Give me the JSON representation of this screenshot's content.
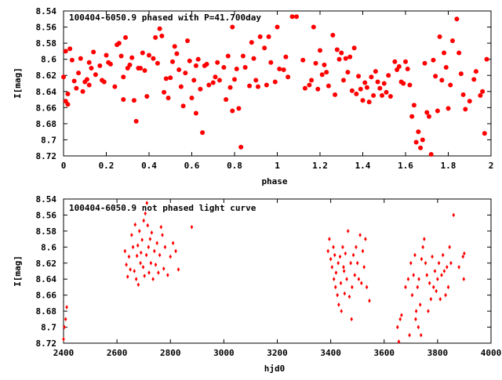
{
  "chart_data": [
    {
      "type": "scatter",
      "title": "100404-6050.9 phased with P=41.700day",
      "xlabel": "phase",
      "ylabel": "I[mag]",
      "xlim": [
        0,
        2
      ],
      "ylim": [
        8.72,
        8.54
      ],
      "y_inverted": true,
      "xticks": [
        "0",
        "0.2",
        "0.4",
        "0.6",
        "0.8",
        "1",
        "1.2",
        "1.4",
        "1.6",
        "1.8",
        "2"
      ],
      "yticks": [
        "8.54",
        "8.56",
        "8.58",
        "8.6",
        "8.62",
        "8.64",
        "8.66",
        "8.68",
        "8.7",
        "8.72"
      ],
      "marker_color": "#ff0000",
      "points": [
        [
          0.0,
          8.622
        ],
        [
          0.01,
          8.59
        ],
        [
          0.01,
          8.652
        ],
        [
          0.02,
          8.643
        ],
        [
          0.02,
          8.656
        ],
        [
          0.03,
          8.587
        ],
        [
          0.04,
          8.601
        ],
        [
          0.05,
          8.627
        ],
        [
          0.06,
          8.636
        ],
        [
          0.07,
          8.617
        ],
        [
          0.08,
          8.599
        ],
        [
          0.09,
          8.64
        ],
        [
          0.1,
          8.628
        ],
        [
          0.11,
          8.625
        ],
        [
          0.12,
          8.604
        ],
        [
          0.12,
          8.632
        ],
        [
          0.13,
          8.611
        ],
        [
          0.14,
          8.591
        ],
        [
          0.15,
          8.619
        ],
        [
          0.17,
          8.608
        ],
        [
          0.18,
          8.626
        ],
        [
          0.19,
          8.628
        ],
        [
          0.2,
          8.595
        ],
        [
          0.21,
          8.604
        ],
        [
          0.22,
          8.606
        ],
        [
          0.24,
          8.634
        ],
        [
          0.25,
          8.582
        ],
        [
          0.26,
          8.58
        ],
        [
          0.27,
          8.596
        ],
        [
          0.28,
          8.622
        ],
        [
          0.28,
          8.65
        ],
        [
          0.29,
          8.573
        ],
        [
          0.3,
          8.611
        ],
        [
          0.31,
          8.607
        ],
        [
          0.32,
          8.598
        ],
        [
          0.33,
          8.651
        ],
        [
          0.34,
          8.677
        ],
        [
          0.35,
          8.611
        ],
        [
          0.36,
          8.611
        ],
        [
          0.37,
          8.592
        ],
        [
          0.38,
          8.614
        ],
        [
          0.39,
          8.646
        ],
        [
          0.4,
          8.595
        ],
        [
          0.42,
          8.599
        ],
        [
          0.43,
          8.573
        ],
        [
          0.44,
          8.605
        ],
        [
          0.45,
          8.562
        ],
        [
          0.46,
          8.571
        ],
        [
          0.47,
          8.641
        ],
        [
          0.48,
          8.624
        ],
        [
          0.49,
          8.648
        ],
        [
          0.5,
          8.623
        ],
        [
          0.51,
          8.603
        ],
        [
          0.52,
          8.584
        ],
        [
          0.53,
          8.593
        ],
        [
          0.54,
          8.613
        ],
        [
          0.55,
          8.634
        ],
        [
          0.56,
          8.658
        ],
        [
          0.57,
          8.617
        ],
        [
          0.58,
          8.577
        ],
        [
          0.59,
          8.602
        ],
        [
          0.6,
          8.648
        ],
        [
          0.61,
          8.626
        ],
        [
          0.62,
          8.667
        ],
        [
          0.62,
          8.608
        ],
        [
          0.63,
          8.6
        ],
        [
          0.64,
          8.637
        ],
        [
          0.65,
          8.691
        ],
        [
          0.66,
          8.608
        ],
        [
          0.67,
          8.606
        ],
        [
          0.68,
          8.632
        ],
        [
          0.7,
          8.629
        ],
        [
          0.71,
          8.622
        ],
        [
          0.72,
          8.604
        ],
        [
          0.73,
          8.626
        ],
        [
          0.75,
          8.61
        ],
        [
          0.76,
          8.65
        ],
        [
          0.77,
          8.596
        ],
        [
          0.78,
          8.635
        ],
        [
          0.79,
          8.664
        ],
        [
          0.79,
          8.56
        ],
        [
          0.8,
          8.625
        ],
        [
          0.81,
          8.612
        ],
        [
          0.82,
          8.661
        ],
        [
          0.83,
          8.709
        ],
        [
          0.84,
          8.596
        ],
        [
          0.85,
          8.61
        ],
        [
          0.87,
          8.633
        ],
        [
          0.88,
          8.579
        ],
        [
          0.89,
          8.599
        ],
        [
          0.9,
          8.626
        ],
        [
          0.91,
          8.634
        ],
        [
          0.92,
          8.572
        ],
        [
          0.94,
          8.586
        ],
        [
          0.95,
          8.632
        ],
        [
          0.96,
          8.572
        ],
        [
          0.97,
          8.604
        ],
        [
          0.99,
          8.628
        ],
        [
          1.0,
          8.56
        ],
        [
          1.01,
          8.612
        ],
        [
          1.03,
          8.613
        ],
        [
          1.04,
          8.597
        ],
        [
          1.05,
          8.622
        ],
        [
          1.07,
          8.547
        ],
        [
          1.09,
          8.547
        ],
        [
          1.12,
          8.601
        ],
        [
          1.13,
          8.636
        ],
        [
          1.15,
          8.632
        ],
        [
          1.16,
          8.626
        ],
        [
          1.17,
          8.56
        ],
        [
          1.18,
          8.605
        ],
        [
          1.19,
          8.637
        ],
        [
          1.2,
          8.589
        ],
        [
          1.21,
          8.619
        ],
        [
          1.22,
          8.607
        ],
        [
          1.23,
          8.616
        ],
        [
          1.24,
          8.633
        ],
        [
          1.26,
          8.57
        ],
        [
          1.27,
          8.644
        ],
        [
          1.28,
          8.588
        ],
        [
          1.29,
          8.6
        ],
        [
          1.3,
          8.592
        ],
        [
          1.31,
          8.626
        ],
        [
          1.32,
          8.599
        ],
        [
          1.33,
          8.616
        ],
        [
          1.34,
          8.597
        ],
        [
          1.35,
          8.639
        ],
        [
          1.36,
          8.586
        ],
        [
          1.37,
          8.643
        ],
        [
          1.38,
          8.621
        ],
        [
          1.39,
          8.637
        ],
        [
          1.4,
          8.651
        ],
        [
          1.41,
          8.629
        ],
        [
          1.42,
          8.635
        ],
        [
          1.43,
          8.653
        ],
        [
          1.44,
          8.622
        ],
        [
          1.45,
          8.645
        ],
        [
          1.46,
          8.615
        ],
        [
          1.47,
          8.628
        ],
        [
          1.48,
          8.636
        ],
        [
          1.49,
          8.645
        ],
        [
          1.5,
          8.63
        ],
        [
          1.51,
          8.641
        ],
        [
          1.52,
          8.62
        ],
        [
          1.53,
          8.646
        ],
        [
          1.55,
          8.603
        ],
        [
          1.56,
          8.613
        ],
        [
          1.57,
          8.609
        ],
        [
          1.58,
          8.628
        ],
        [
          1.59,
          8.63
        ],
        [
          1.6,
          8.603
        ],
        [
          1.61,
          8.612
        ],
        [
          1.62,
          8.632
        ],
        [
          1.63,
          8.671
        ],
        [
          1.64,
          8.657
        ],
        [
          1.65,
          8.703
        ],
        [
          1.66,
          8.69
        ],
        [
          1.67,
          8.71
        ],
        [
          1.68,
          8.7
        ],
        [
          1.69,
          8.605
        ],
        [
          1.7,
          8.666
        ],
        [
          1.71,
          8.671
        ],
        [
          1.72,
          8.718
        ],
        [
          1.73,
          8.601
        ],
        [
          1.74,
          8.621
        ],
        [
          1.75,
          8.664
        ],
        [
          1.76,
          8.572
        ],
        [
          1.77,
          8.626
        ],
        [
          1.78,
          8.592
        ],
        [
          1.79,
          8.61
        ],
        [
          1.8,
          8.661
        ],
        [
          1.81,
          8.632
        ],
        [
          1.82,
          8.577
        ],
        [
          1.84,
          8.55
        ],
        [
          1.85,
          8.592
        ],
        [
          1.86,
          8.618
        ],
        [
          1.87,
          8.644
        ],
        [
          1.88,
          8.662
        ],
        [
          1.9,
          8.652
        ],
        [
          1.92,
          8.625
        ],
        [
          1.93,
          8.615
        ],
        [
          1.95,
          8.645
        ],
        [
          1.96,
          8.64
        ],
        [
          1.97,
          8.692
        ],
        [
          1.98,
          8.6
        ]
      ]
    },
    {
      "type": "scatter",
      "title": "100404-6050.9 not phased light curve",
      "xlabel": "hjd0",
      "ylabel": "I[mag]",
      "xlim": [
        2400,
        4000
      ],
      "ylim": [
        8.72,
        8.54
      ],
      "y_inverted": true,
      "xticks": [
        "2400",
        "2600",
        "2800",
        "3000",
        "3200",
        "3400",
        "3600",
        "3800",
        "4000"
      ],
      "yticks": [
        "8.54",
        "8.56",
        "8.58",
        "8.6",
        "8.62",
        "8.64",
        "8.66",
        "8.68",
        "8.7",
        "8.72"
      ],
      "marker_color": "#ff0000",
      "points": [
        [
          2400,
          8.715
        ],
        [
          2403,
          8.7
        ],
        [
          2408,
          8.69
        ],
        [
          2412,
          8.675
        ],
        [
          2630,
          8.605
        ],
        [
          2635,
          8.622
        ],
        [
          2640,
          8.637
        ],
        [
          2645,
          8.612
        ],
        [
          2650,
          8.628
        ],
        [
          2655,
          8.585
        ],
        [
          2660,
          8.6
        ],
        [
          2665,
          8.63
        ],
        [
          2668,
          8.572
        ],
        [
          2672,
          8.64
        ],
        [
          2675,
          8.611
        ],
        [
          2678,
          8.598
        ],
        [
          2680,
          8.647
        ],
        [
          2684,
          8.58
        ],
        [
          2688,
          8.62
        ],
        [
          2690,
          8.607
        ],
        [
          2694,
          8.591
        ],
        [
          2698,
          8.625
        ],
        [
          2700,
          8.567
        ],
        [
          2703,
          8.636
        ],
        [
          2706,
          8.558
        ],
        [
          2710,
          8.61
        ],
        [
          2712,
          8.545
        ],
        [
          2715,
          8.573
        ],
        [
          2718,
          8.6
        ],
        [
          2720,
          8.632
        ],
        [
          2724,
          8.59
        ],
        [
          2727,
          8.62
        ],
        [
          2730,
          8.582
        ],
        [
          2735,
          8.64
        ],
        [
          2740,
          8.605
        ],
        [
          2745,
          8.622
        ],
        [
          2750,
          8.595
        ],
        [
          2755,
          8.632
        ],
        [
          2760,
          8.61
        ],
        [
          2765,
          8.575
        ],
        [
          2770,
          8.585
        ],
        [
          2775,
          8.627
        ],
        [
          2780,
          8.6
        ],
        [
          2790,
          8.635
        ],
        [
          2800,
          8.612
        ],
        [
          2810,
          8.595
        ],
        [
          2820,
          8.605
        ],
        [
          2830,
          8.628
        ],
        [
          2880,
          8.575
        ],
        [
          3390,
          8.605
        ],
        [
          3395,
          8.59
        ],
        [
          3400,
          8.615
        ],
        [
          3405,
          8.625
        ],
        [
          3410,
          8.6
        ],
        [
          3412,
          8.64
        ],
        [
          3415,
          8.61
        ],
        [
          3418,
          8.65
        ],
        [
          3420,
          8.632
        ],
        [
          3425,
          8.66
        ],
        [
          3428,
          8.62
        ],
        [
          3430,
          8.672
        ],
        [
          3435,
          8.612
        ],
        [
          3438,
          8.645
        ],
        [
          3440,
          8.68
        ],
        [
          3445,
          8.6
        ],
        [
          3448,
          8.625
        ],
        [
          3450,
          8.63
        ],
        [
          3452,
          8.658
        ],
        [
          3455,
          8.608
        ],
        [
          3460,
          8.64
        ],
        [
          3465,
          8.58
        ],
        [
          3470,
          8.662
        ],
        [
          3475,
          8.62
        ],
        [
          3478,
          8.69
        ],
        [
          3480,
          8.65
        ],
        [
          3485,
          8.61
        ],
        [
          3490,
          8.635
        ],
        [
          3495,
          8.6
        ],
        [
          3500,
          8.62
        ],
        [
          3505,
          8.64
        ],
        [
          3510,
          8.585
        ],
        [
          3515,
          8.645
        ],
        [
          3520,
          8.605
        ],
        [
          3525,
          8.625
        ],
        [
          3530,
          8.59
        ],
        [
          3535,
          8.65
        ],
        [
          3545,
          8.667
        ],
        [
          3650,
          8.7
        ],
        [
          3655,
          8.718
        ],
        [
          3660,
          8.69
        ],
        [
          3665,
          8.685
        ],
        [
          3680,
          8.65
        ],
        [
          3690,
          8.64
        ],
        [
          3695,
          8.71
        ],
        [
          3700,
          8.62
        ],
        [
          3705,
          8.66
        ],
        [
          3710,
          8.635
        ],
        [
          3715,
          8.61
        ],
        [
          3718,
          8.69
        ],
        [
          3720,
          8.68
        ],
        [
          3725,
          8.65
        ],
        [
          3728,
          8.7
        ],
        [
          3730,
          8.64
        ],
        [
          3735,
          8.672
        ],
        [
          3738,
          8.71
        ],
        [
          3740,
          8.615
        ],
        [
          3745,
          8.6
        ],
        [
          3750,
          8.59
        ],
        [
          3755,
          8.62
        ],
        [
          3760,
          8.635
        ],
        [
          3765,
          8.68
        ],
        [
          3770,
          8.645
        ],
        [
          3775,
          8.665
        ],
        [
          3780,
          8.612
        ],
        [
          3785,
          8.65
        ],
        [
          3790,
          8.63
        ],
        [
          3795,
          8.655
        ],
        [
          3800,
          8.64
        ],
        [
          3805,
          8.62
        ],
        [
          3810,
          8.665
        ],
        [
          3815,
          8.635
        ],
        [
          3820,
          8.61
        ],
        [
          3825,
          8.63
        ],
        [
          3830,
          8.66
        ],
        [
          3835,
          8.625
        ],
        [
          3840,
          8.65
        ],
        [
          3845,
          8.6
        ],
        [
          3850,
          8.62
        ],
        [
          3860,
          8.56
        ],
        [
          3880,
          8.625
        ],
        [
          3895,
          8.612
        ],
        [
          3898,
          8.64
        ],
        [
          3900,
          8.608
        ]
      ]
    }
  ]
}
